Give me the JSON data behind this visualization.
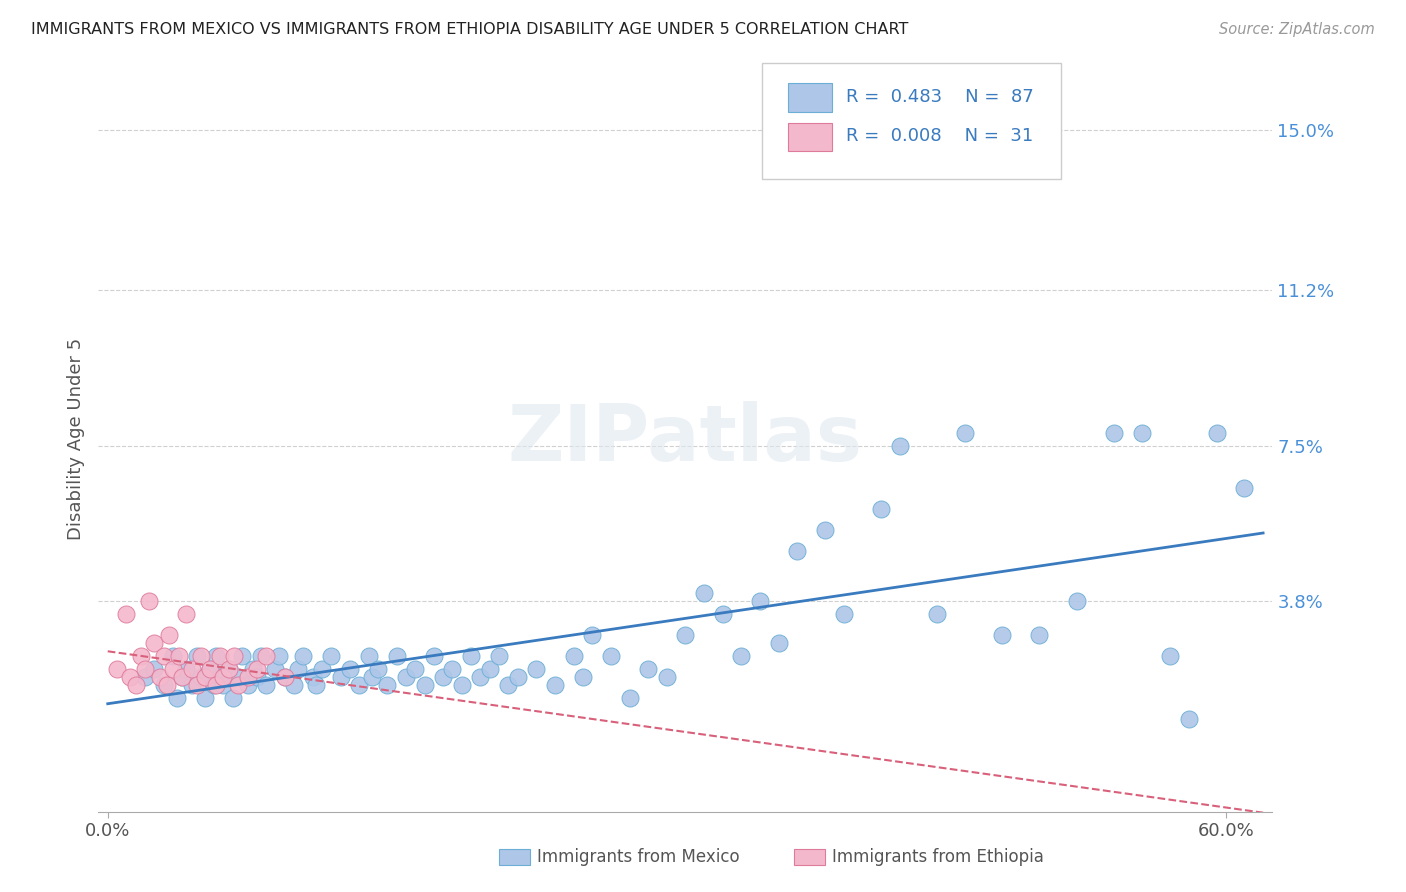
{
  "title": "IMMIGRANTS FROM MEXICO VS IMMIGRANTS FROM ETHIOPIA DISABILITY AGE UNDER 5 CORRELATION CHART",
  "source": "Source: ZipAtlas.com",
  "ylabel_label": "Disability Age Under 5",
  "y_tick_labels": [
    "15.0%",
    "11.2%",
    "7.5%",
    "3.8%"
  ],
  "y_tick_values": [
    0.15,
    0.112,
    0.075,
    0.038
  ],
  "xlim": [
    -0.005,
    0.625
  ],
  "ylim": [
    -0.012,
    0.165
  ],
  "mexico_color": "#aec6e8",
  "mexico_edge_color": "#6baed6",
  "ethiopia_color": "#f4b8cc",
  "ethiopia_edge_color": "#de7a9a",
  "regression_mexico_color": "#3a7bbf",
  "regression_ethiopia_color": "#d9607a",
  "legend_R_mexico": "R = 0.483",
  "legend_N_mexico": "N = 87",
  "legend_R_ethiopia": "R = 0.008",
  "legend_N_ethiopia": "N = 31",
  "watermark": "ZIPatlas",
  "grid_color": "#d0d0d0",
  "mexico_x": [
    0.02,
    0.025,
    0.03,
    0.035,
    0.037,
    0.04,
    0.042,
    0.045,
    0.048,
    0.05,
    0.052,
    0.055,
    0.057,
    0.058,
    0.06,
    0.062,
    0.065,
    0.067,
    0.07,
    0.072,
    0.075,
    0.078,
    0.08,
    0.082,
    0.085,
    0.09,
    0.092,
    0.095,
    0.1,
    0.102,
    0.105,
    0.11,
    0.112,
    0.115,
    0.12,
    0.125,
    0.13,
    0.135,
    0.14,
    0.142,
    0.145,
    0.15,
    0.155,
    0.16,
    0.165,
    0.17,
    0.175,
    0.18,
    0.185,
    0.19,
    0.195,
    0.2,
    0.205,
    0.21,
    0.215,
    0.22,
    0.23,
    0.24,
    0.25,
    0.255,
    0.26,
    0.27,
    0.28,
    0.29,
    0.3,
    0.31,
    0.32,
    0.33,
    0.34,
    0.35,
    0.36,
    0.37,
    0.385,
    0.395,
    0.415,
    0.425,
    0.445,
    0.46,
    0.48,
    0.5,
    0.52,
    0.54,
    0.555,
    0.57,
    0.58,
    0.595,
    0.61
  ],
  "mexico_y": [
    0.02,
    0.022,
    0.018,
    0.025,
    0.015,
    0.02,
    0.022,
    0.018,
    0.025,
    0.02,
    0.015,
    0.022,
    0.018,
    0.025,
    0.02,
    0.018,
    0.022,
    0.015,
    0.02,
    0.025,
    0.018,
    0.022,
    0.02,
    0.025,
    0.018,
    0.022,
    0.025,
    0.02,
    0.018,
    0.022,
    0.025,
    0.02,
    0.018,
    0.022,
    0.025,
    0.02,
    0.022,
    0.018,
    0.025,
    0.02,
    0.022,
    0.018,
    0.025,
    0.02,
    0.022,
    0.018,
    0.025,
    0.02,
    0.022,
    0.018,
    0.025,
    0.02,
    0.022,
    0.025,
    0.018,
    0.02,
    0.022,
    0.018,
    0.025,
    0.02,
    0.03,
    0.025,
    0.015,
    0.022,
    0.02,
    0.03,
    0.04,
    0.035,
    0.025,
    0.038,
    0.028,
    0.05,
    0.055,
    0.035,
    0.06,
    0.075,
    0.035,
    0.078,
    0.03,
    0.03,
    0.038,
    0.078,
    0.078,
    0.025,
    0.01,
    0.078,
    0.065
  ],
  "ethiopia_x": [
    0.005,
    0.01,
    0.012,
    0.015,
    0.018,
    0.02,
    0.022,
    0.025,
    0.028,
    0.03,
    0.032,
    0.033,
    0.035,
    0.038,
    0.04,
    0.042,
    0.045,
    0.048,
    0.05,
    0.052,
    0.055,
    0.058,
    0.06,
    0.062,
    0.065,
    0.068,
    0.07,
    0.075,
    0.08,
    0.085,
    0.095
  ],
  "ethiopia_y": [
    0.022,
    0.035,
    0.02,
    0.018,
    0.025,
    0.022,
    0.038,
    0.028,
    0.02,
    0.025,
    0.018,
    0.03,
    0.022,
    0.025,
    0.02,
    0.035,
    0.022,
    0.018,
    0.025,
    0.02,
    0.022,
    0.018,
    0.025,
    0.02,
    0.022,
    0.025,
    0.018,
    0.02,
    0.022,
    0.025,
    0.02
  ]
}
